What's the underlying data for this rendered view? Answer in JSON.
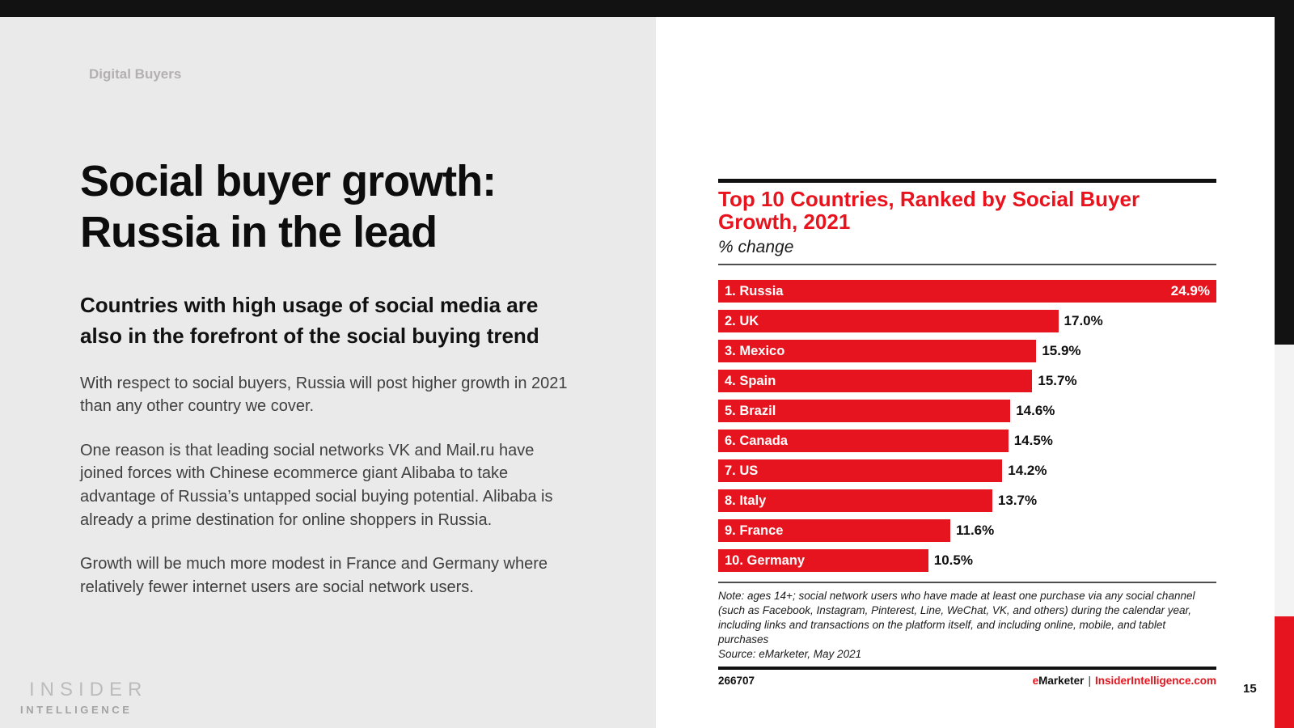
{
  "page": {
    "eyebrow": "Digital Buyers",
    "title_line1": "Social buyer growth:",
    "title_line2": "Russia in the lead",
    "subtitle": "Countries with high usage of social media are also in the forefront of the social buying trend",
    "paragraphs": [
      "With respect to social buyers, Russia will post higher growth in 2021 than any other country we cover.",
      "One reason is that leading social networks VK and Mail.ru have joined forces with Chinese ecommerce giant Alibaba to take advantage of Russia’s untapped social buying potential. Alibaba is already a prime destination for online shoppers in Russia.",
      "Growth will be much more modest in France and Germany where relatively fewer internet users are social network users."
    ],
    "brand_line1": "INSIDER",
    "brand_line2": "INTELLIGENCE",
    "page_number": "15"
  },
  "chart": {
    "title": "Top 10 Countries, Ranked by Social Buyer Growth, 2021",
    "subtitle": "% change",
    "note": "Note: ages 14+; social network users who have made at least one purchase via any social channel (such as Facebook, Instagram, Pinterest, Line, WeChat, VK, and others) during the calendar year, including links and transactions on the platform itself, and including online, mobile, and tablet purchases",
    "source": "Source: eMarketer, May 2021",
    "chart_id": "266707",
    "brand_e": "e",
    "brand_marketer": "Marketer",
    "brand_separator": "|",
    "brand_site": "InsiderIntelligence.com"
  },
  "chart_data": {
    "type": "bar",
    "orientation": "horizontal",
    "title": "Top 10 Countries, Ranked by Social Buyer Growth, 2021",
    "xlabel": "% change",
    "ylabel": "",
    "xlim": [
      0,
      24.9
    ],
    "grid": false,
    "legend": false,
    "categories": [
      "1. Russia",
      "2. UK",
      "3. Mexico",
      "4. Spain",
      "5. Brazil",
      "6. Canada",
      "7. US",
      "8. Italy",
      "9. France",
      "10. Germany"
    ],
    "values": [
      24.9,
      17.0,
      15.9,
      15.7,
      14.6,
      14.5,
      14.2,
      13.7,
      11.6,
      10.5
    ],
    "value_labels": [
      "24.9%",
      "17.0%",
      "15.9%",
      "15.7%",
      "14.6%",
      "14.5%",
      "14.2%",
      "13.7%",
      "11.6%",
      "10.5%"
    ],
    "bar_color": "#e6141e"
  },
  "colors": {
    "accent_red": "#e8131d",
    "panel_gray": "#eaeaea",
    "bar_red": "#e6141e",
    "edge_black": "#121212",
    "edge_gray": "#f3f3f3"
  }
}
